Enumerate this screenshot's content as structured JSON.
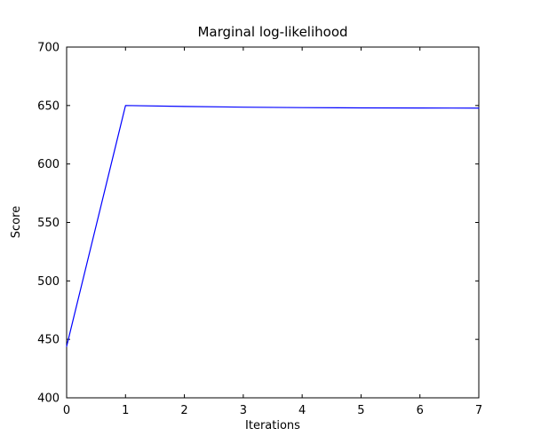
{
  "chart_data": {
    "type": "line",
    "title": "Marginal log-likelihood",
    "xlabel": "Iterations",
    "ylabel": "Score",
    "x": [
      0,
      1,
      2,
      3,
      4,
      5,
      6,
      7
    ],
    "y": [
      444,
      650,
      649.2,
      648.6,
      648.2,
      648.0,
      647.9,
      647.8
    ],
    "xlim": [
      0,
      7
    ],
    "ylim": [
      400,
      700
    ],
    "xticks": [
      0,
      1,
      2,
      3,
      4,
      5,
      6,
      7
    ],
    "yticks": [
      400,
      450,
      500,
      550,
      600,
      650,
      700
    ],
    "series_name": "marginal-log-likelihood",
    "line_color": "#0000ff",
    "axis_color": "#000000",
    "background_color": "#ffffff",
    "grid": false,
    "legend": null
  }
}
